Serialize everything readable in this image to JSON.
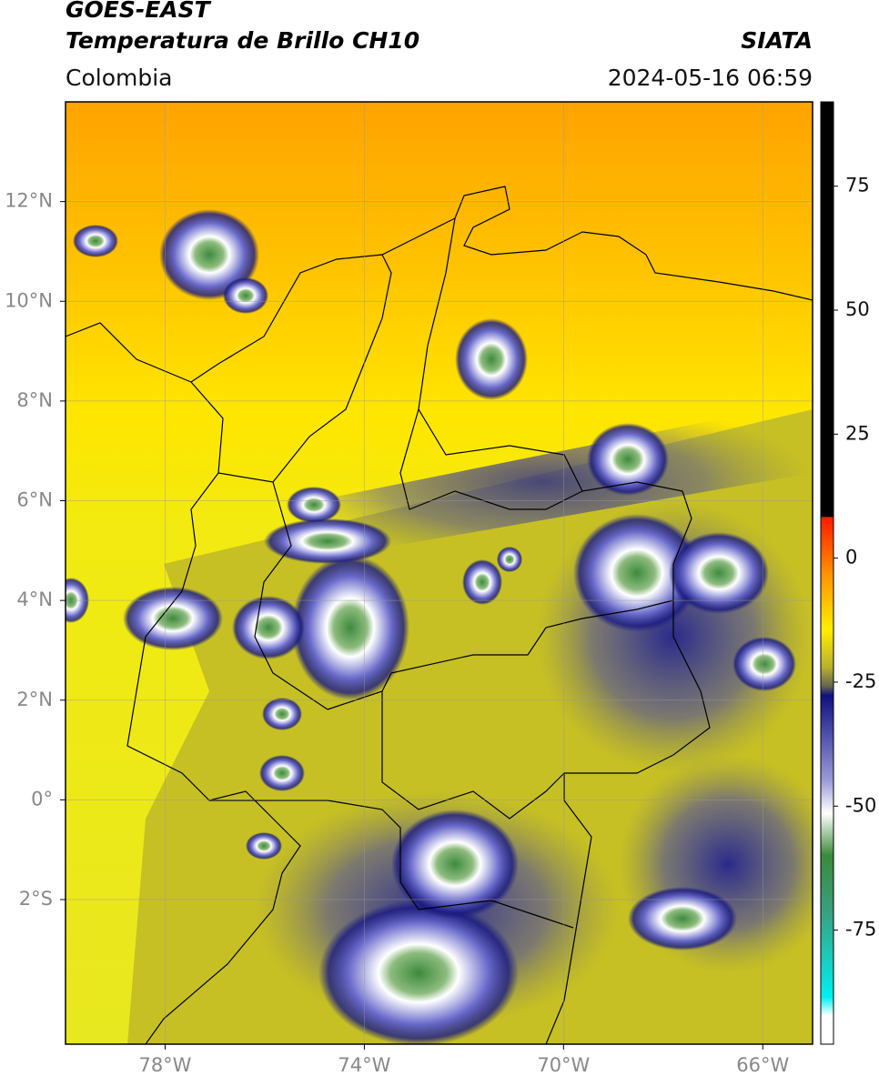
{
  "header": {
    "title": "GOES-EAST",
    "subtitle": "Temperatura de Brillo CH10",
    "source": "SIATA",
    "region": "Colombia",
    "datetime": "2024-05-16 06:59"
  },
  "map": {
    "xlim": [
      -80,
      -65
    ],
    "ylim": [
      -4.9,
      14
    ],
    "xticks": [
      {
        "value": -78,
        "label": "78°W"
      },
      {
        "value": -74,
        "label": "74°W"
      },
      {
        "value": -70,
        "label": "70°W"
      },
      {
        "value": -66,
        "label": "66°W"
      }
    ],
    "yticks": [
      {
        "value": 12,
        "label": "12°N"
      },
      {
        "value": 10,
        "label": "10°N"
      },
      {
        "value": 8,
        "label": "8°N"
      },
      {
        "value": 6,
        "label": "6°N"
      },
      {
        "value": 4,
        "label": "4°N"
      },
      {
        "value": 2,
        "label": "2°N"
      },
      {
        "value": 0,
        "label": "0°"
      },
      {
        "value": -2,
        "label": "2°S"
      }
    ],
    "grid": true
  },
  "colorbar": {
    "clim": [
      -98,
      92
    ],
    "ticks": [
      75,
      50,
      25,
      0,
      -25,
      -50,
      -75
    ]
  }
}
